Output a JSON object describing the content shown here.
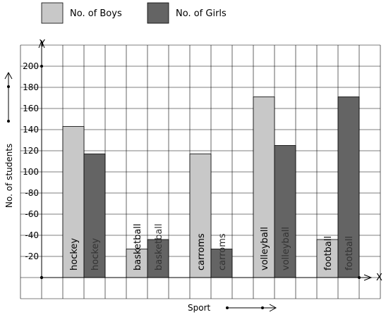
{
  "chart_data": {
    "type": "bar",
    "categories": [
      "hockey",
      "basketball",
      "carroms",
      "volleyball",
      "football"
    ],
    "series": [
      {
        "name": "No. of Boys",
        "values": [
          143,
          27,
          117,
          171,
          36
        ],
        "color": "#c8c8c8"
      },
      {
        "name": "No. of Girls",
        "values": [
          117,
          36,
          27,
          125,
          171
        ],
        "color": "#646464"
      }
    ],
    "xlabel": "Sport",
    "ylabel": "No. of students",
    "x_axis_letter": "X",
    "y_axis_letter": "Y",
    "ylim": [
      0,
      200
    ],
    "yticks": [
      20,
      40,
      60,
      80,
      100,
      120,
      140,
      160,
      180,
      200
    ],
    "ytick_labels": [
      "-20",
      "-40",
      "-60",
      "-80",
      "100",
      "120",
      "140",
      "160",
      "180",
      "200"
    ],
    "grid": true,
    "legend_position": "top-left",
    "grid_color": "#000000",
    "boys_label_color": "#000000",
    "girls_label_color": "#333333"
  }
}
